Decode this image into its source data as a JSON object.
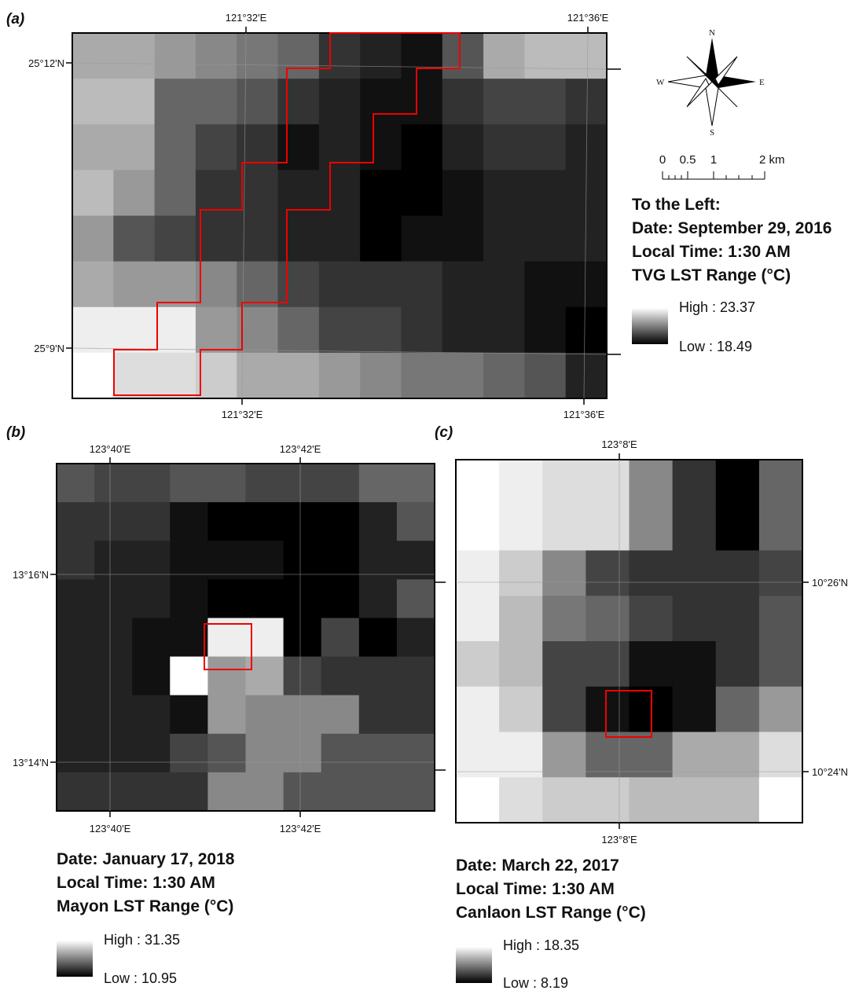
{
  "panels": [
    {
      "label": "(a)",
      "top_ticks": [
        "121°32'E",
        "121°36'E"
      ],
      "bottom_ticks": [
        "121°32'E",
        "121°36'E"
      ],
      "side_ticks": [
        "25°12'N",
        "25°9'N"
      ],
      "heading": "To the Left:",
      "date": "Date: September 29, 2016",
      "time": "Local Time: 1:30 AM",
      "range_title": "TVG LST Range (°C)",
      "high": "High : 23.37",
      "low": "Low : 18.49"
    },
    {
      "label": "(b)",
      "top_ticks": [
        "123°40'E",
        "123°42'E"
      ],
      "bottom_ticks": [
        "123°40'E",
        "123°42'E"
      ],
      "side_ticks": [
        "13°16'N",
        "13°14'N"
      ],
      "date": "Date: January 17, 2018",
      "time": "Local Time: 1:30 AM",
      "range_title": "Mayon LST Range (°C)",
      "high": "High : 31.35",
      "low": "Low : 10.95"
    },
    {
      "label": "(c)",
      "top_ticks": [
        "123°8'E"
      ],
      "bottom_ticks": [
        "123°8'E"
      ],
      "side_ticks": [
        "10°26'N",
        "10°24'N"
      ],
      "date": "Date: March 22, 2017",
      "time": "Local Time: 1:30 AM",
      "range_title": "Canlaon LST Range (°C)",
      "high": "High : 18.35",
      "low": "Low : 8.19"
    }
  ],
  "compass": {
    "n": "N",
    "s": "S",
    "e": "E",
    "w": "W"
  },
  "scale_bar": {
    "labels": [
      "0",
      "0.5",
      "1",
      "2 km"
    ]
  }
}
